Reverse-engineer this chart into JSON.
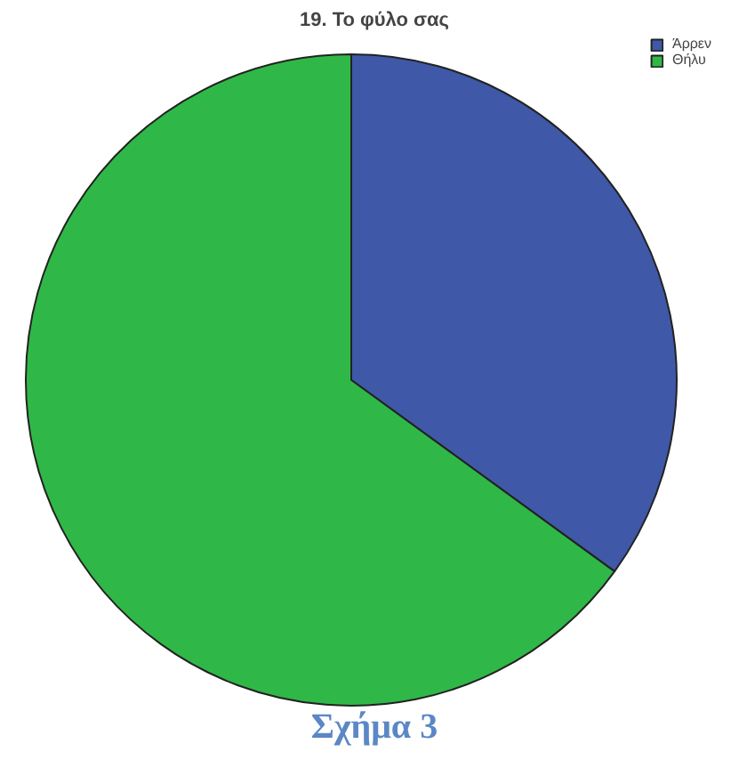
{
  "chart_data": {
    "type": "pie",
    "title": "19. Το φύλο σας",
    "categories": [
      "Άρρεν",
      "Θήλυ"
    ],
    "values": [
      35,
      65
    ],
    "colors": [
      "#3f58a8",
      "#2fb847"
    ],
    "legend": "top right",
    "annotations": [
      "Σχήμα 3"
    ]
  }
}
